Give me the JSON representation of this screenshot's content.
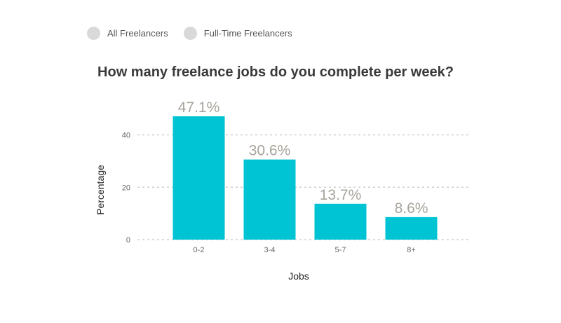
{
  "legend": {
    "items": [
      {
        "label": "All Freelancers",
        "color": "#d9d9d9"
      },
      {
        "label": "Full-Time Freelancers",
        "color": "#d9d9d9"
      }
    ]
  },
  "title": "How many freelance jobs do you complete per week?",
  "chart_data": {
    "type": "bar",
    "title": "How many freelance jobs do you complete per week?",
    "categories": [
      "0-2",
      "3-4",
      "5-7",
      "8+"
    ],
    "values": [
      47.1,
      30.6,
      13.7,
      8.6
    ],
    "data_labels": [
      "47.1%",
      "30.6%",
      "13.7%",
      "8.6%"
    ],
    "xlabel": "Jobs",
    "ylabel": "Percentage",
    "yticks": [
      0,
      20,
      40
    ],
    "ylim": [
      0,
      47.1
    ],
    "grid": true,
    "bar_color": "#00c4d3",
    "legend_placement": "top-left"
  }
}
